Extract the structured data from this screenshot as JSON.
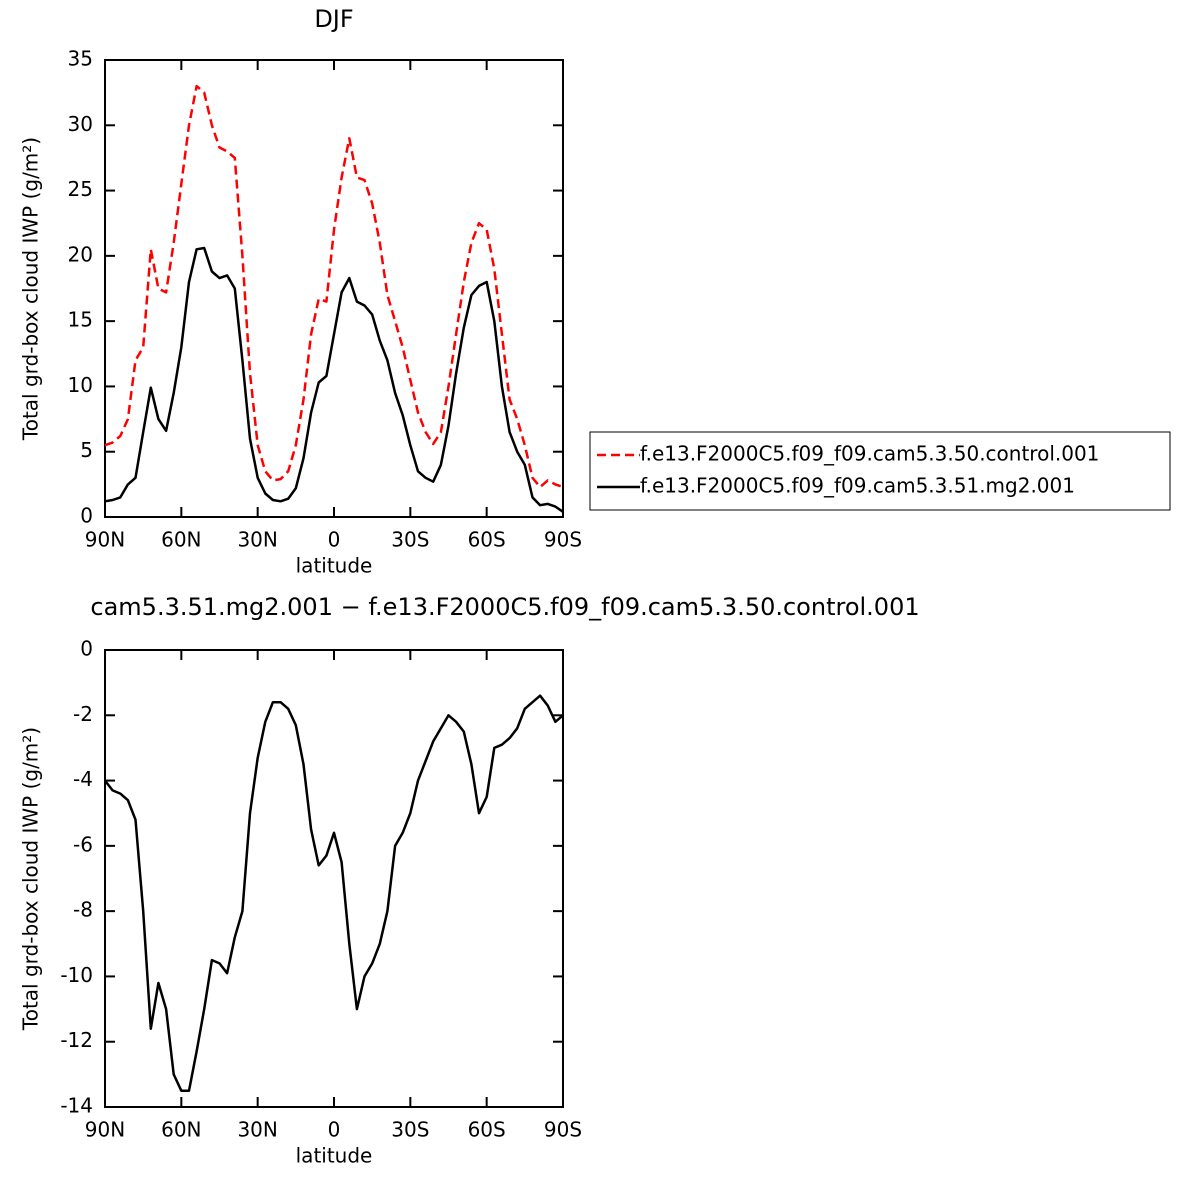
{
  "chart_data": [
    {
      "type": "line",
      "title": "DJF",
      "xlabel": "latitude",
      "ylabel": "Total grd-box cloud IWP (g/m²)",
      "x": [
        90,
        87,
        84,
        81,
        78,
        75,
        72,
        69,
        66,
        63,
        60,
        57,
        54,
        51,
        48,
        45,
        42,
        39,
        36,
        33,
        30,
        27,
        24,
        21,
        18,
        15,
        12,
        9,
        6,
        3,
        0,
        -3,
        -6,
        -9,
        -12,
        -15,
        -18,
        -21,
        -24,
        -27,
        -30,
        -33,
        -36,
        -39,
        -42,
        -45,
        -48,
        -51,
        -54,
        -57,
        -60,
        -63,
        -66,
        -69,
        -72,
        -75,
        -78,
        -81,
        -84,
        -87,
        -90
      ],
      "xlim": [
        90,
        -90
      ],
      "xticks": [
        {
          "value": 90,
          "label": "90N"
        },
        {
          "value": 60,
          "label": "60N"
        },
        {
          "value": 30,
          "label": "30N"
        },
        0,
        {
          "value": -30,
          "label": "30S"
        },
        {
          "value": -60,
          "label": "60S"
        },
        {
          "value": -90,
          "label": "90S"
        }
      ],
      "ylim": [
        0,
        35
      ],
      "yticks": [
        0,
        5,
        10,
        15,
        20,
        25,
        30,
        35
      ],
      "legend": "right",
      "series": [
        {
          "name": "f.e13.F2000C5.f09_f09.cam5.3.50.control.001",
          "color": "#ff0000",
          "linestyle": "dashed",
          "values": [
            5.5,
            5.7,
            6.2,
            7.5,
            12,
            13,
            20.5,
            17.5,
            17.2,
            21,
            25.5,
            30,
            33,
            32.5,
            30,
            28.3,
            28,
            27.5,
            20,
            11,
            5.5,
            3.5,
            2.8,
            2.9,
            3.5,
            5.5,
            9,
            14,
            16.7,
            16.5,
            22,
            26,
            29,
            26,
            25.8,
            24,
            21,
            17,
            15,
            13,
            10.5,
            8,
            6.5,
            5.6,
            6.5,
            10,
            14,
            18,
            21,
            22.5,
            22,
            19,
            14,
            9,
            7.5,
            5.5,
            3,
            2.3,
            2.8,
            2.5,
            2.3
          ]
        },
        {
          "name": "f.e13.F2000C5.f09_f09.cam5.3.51.mg2.001",
          "color": "#000000",
          "linestyle": "solid",
          "values": [
            1.2,
            1.3,
            1.5,
            2.5,
            3,
            6.5,
            9.9,
            7.5,
            6.6,
            9.5,
            13,
            18,
            20.5,
            20.6,
            18.8,
            18.3,
            18.5,
            17.5,
            12,
            6,
            3,
            1.8,
            1.3,
            1.2,
            1.4,
            2.2,
            4.5,
            8,
            10.3,
            10.8,
            14,
            17.2,
            18.3,
            16.5,
            16.2,
            15.5,
            13.5,
            12,
            9.5,
            7.8,
            5.5,
            3.5,
            3,
            2.7,
            4,
            7,
            11,
            14.5,
            17,
            17.7,
            18,
            15,
            10,
            6.5,
            5,
            4,
            1.5,
            0.9,
            1.0,
            0.8,
            0.4
          ]
        }
      ]
    },
    {
      "type": "line",
      "title": "cam5.3.51.mg2.001 − f.e13.F2000C5.f09_f09.cam5.3.50.control.001",
      "xlabel": "latitude",
      "ylabel": "Total grd-box cloud IWP (g/m²)",
      "x": [
        90,
        87,
        84,
        81,
        78,
        75,
        72,
        69,
        66,
        63,
        60,
        57,
        54,
        51,
        48,
        45,
        42,
        39,
        36,
        33,
        30,
        27,
        24,
        21,
        18,
        15,
        12,
        9,
        6,
        3,
        0,
        -3,
        -6,
        -9,
        -12,
        -15,
        -18,
        -21,
        -24,
        -27,
        -30,
        -33,
        -36,
        -39,
        -42,
        -45,
        -48,
        -51,
        -54,
        -57,
        -60,
        -63,
        -66,
        -69,
        -72,
        -75,
        -78,
        -81,
        -84,
        -87,
        -90
      ],
      "xlim": [
        90,
        -90
      ],
      "xticks": [
        {
          "value": 90,
          "label": "90N"
        },
        {
          "value": 60,
          "label": "60N"
        },
        {
          "value": 30,
          "label": "30N"
        },
        0,
        {
          "value": -30,
          "label": "30S"
        },
        {
          "value": -60,
          "label": "60S"
        },
        {
          "value": -90,
          "label": "90S"
        }
      ],
      "ylim": [
        -14,
        0
      ],
      "yticks": [
        -14,
        -12,
        -10,
        -8,
        -6,
        -4,
        -2,
        0
      ],
      "series": [
        {
          "color": "#000000",
          "linestyle": "solid",
          "values": [
            -4.0,
            -4.3,
            -4.4,
            -4.6,
            -5.2,
            -8,
            -11.6,
            -10.2,
            -11,
            -13,
            -13.5,
            -13.5,
            -12.3,
            -11,
            -9.5,
            -9.6,
            -9.9,
            -8.8,
            -8,
            -5,
            -3.3,
            -2.2,
            -1.6,
            -1.6,
            -1.8,
            -2.3,
            -3.5,
            -5.5,
            -6.6,
            -6.3,
            -5.6,
            -6.5,
            -9,
            -11,
            -10,
            -9.6,
            -9,
            -8,
            -6,
            -5.6,
            -5,
            -4,
            -3.4,
            -2.8,
            -2.4,
            -2.0,
            -2.2,
            -2.5,
            -3.5,
            -5.0,
            -4.5,
            -3,
            -2.9,
            -2.7,
            -2.4,
            -1.8,
            -1.6,
            -1.4,
            -1.7,
            -2.2,
            -2.0
          ]
        }
      ]
    }
  ]
}
